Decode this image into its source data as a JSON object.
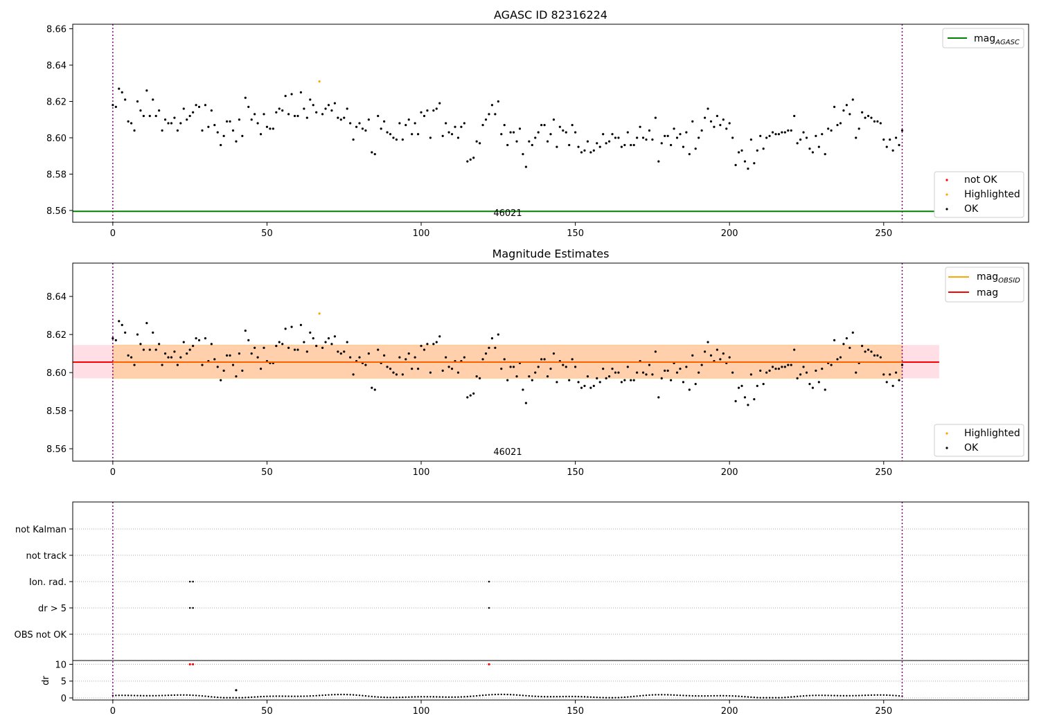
{
  "figure": {
    "top_title": "AGASC ID 82316224",
    "mid_title": "Magnitude Estimates",
    "obsid_label": "46021"
  },
  "legends": {
    "top_lines": [
      {
        "label": "mag",
        "sub": "AGASC",
        "color": "#008000"
      }
    ],
    "top_points": [
      {
        "label": "not OK",
        "color": "#ff0000"
      },
      {
        "label": "Highlighted",
        "color": "#ffa500"
      },
      {
        "label": "OK",
        "color": "#000000"
      }
    ],
    "mid_lines": [
      {
        "label": "mag",
        "sub": "OBSID",
        "color": "#ffa500"
      },
      {
        "label": "mag",
        "sub": "",
        "color": "#ff0000"
      }
    ],
    "mid_points": [
      {
        "label": "Highlighted",
        "color": "#ffa500"
      },
      {
        "label": "OK",
        "color": "#000000"
      }
    ]
  },
  "chart_data": [
    {
      "type": "scatter",
      "title": "AGASC ID 82316224",
      "xlim": [
        -13,
        297
      ],
      "ylim": [
        8.5535,
        8.6625
      ],
      "xticks": [
        0,
        50,
        100,
        150,
        200,
        250
      ],
      "yticks": [
        8.56,
        8.58,
        8.6,
        8.62,
        8.64,
        8.66
      ],
      "mag_agasc": 8.5595,
      "obs_boundaries": [
        0,
        256
      ],
      "highlighted": [
        {
          "x": 67,
          "y": 8.631
        }
      ],
      "ok_mags": [
        8.618,
        8.617,
        8.627,
        8.625,
        8.621,
        8.609,
        8.608,
        8.604,
        8.62,
        8.615,
        8.612,
        8.626,
        8.612,
        8.621,
        8.612,
        8.615,
        8.604,
        8.61,
        8.608,
        8.608,
        8.611,
        8.604,
        8.608,
        8.616,
        8.61,
        8.612,
        8.614,
        8.618,
        8.617,
        8.604,
        8.618,
        8.606,
        8.615,
        8.607,
        8.603,
        8.596,
        8.601,
        8.609,
        8.609,
        8.604,
        8.598,
        8.61,
        8.601,
        8.622,
        8.617,
        8.61,
        8.613,
        8.608,
        8.602,
        8.613,
        8.606,
        8.605,
        8.605,
        8.614,
        8.616,
        8.615,
        8.623,
        8.613,
        8.624,
        8.612,
        8.612,
        8.625,
        8.616,
        8.611,
        8.621,
        8.618,
        8.614,
        8.631,
        8.613,
        8.616,
        8.618,
        8.615,
        8.619,
        8.611,
        8.61,
        8.611,
        8.616,
        8.608,
        8.599,
        8.606,
        8.608,
        8.605,
        8.604,
        8.61,
        8.592,
        8.591,
        8.612,
        8.605,
        8.609,
        8.603,
        8.602,
        8.6,
        8.599,
        8.608,
        8.599,
        8.607,
        8.61,
        8.602,
        8.608,
        8.602,
        8.614,
        8.612,
        8.615,
        8.6,
        8.615,
        8.616,
        8.619,
        8.601,
        8.608,
        8.603,
        8.602,
        8.606,
        8.6,
        8.606,
        8.608,
        8.587,
        8.588,
        8.589,
        8.598,
        8.597,
        8.607,
        8.61,
        8.613,
        8.618,
        8.613,
        8.62,
        8.602,
        8.607,
        8.596,
        8.603,
        8.603,
        8.598,
        8.605,
        8.591,
        8.584,
        8.598,
        8.596,
        8.6,
        8.603,
        8.607,
        8.607,
        8.598,
        8.602,
        8.61,
        8.595,
        8.606,
        8.604,
        8.603,
        8.596,
        8.607,
        8.603,
        8.595,
        8.592,
        8.593,
        8.598,
        8.592,
        8.593,
        8.597,
        8.595,
        8.602,
        8.597,
        8.598,
        8.602,
        8.6,
        8.6,
        8.595,
        8.596,
        8.603,
        8.596,
        8.596,
        8.6,
        8.606,
        8.6,
        8.599,
        8.604,
        8.599,
        8.611,
        8.587,
        8.597,
        8.601,
        8.601,
        8.596,
        8.605,
        8.6,
        8.602,
        8.595,
        8.603,
        8.591,
        8.609,
        8.594,
        8.6,
        8.604,
        8.611,
        8.616,
        8.609,
        8.606,
        8.612,
        8.607,
        8.61,
        8.605,
        8.608,
        8.6,
        8.585,
        8.592,
        8.593,
        8.587,
        8.583,
        8.599,
        8.586,
        8.593,
        8.601,
        8.594,
        8.6,
        8.601,
        8.603,
        8.602,
        8.602,
        8.603,
        8.603,
        8.604,
        8.604,
        8.612,
        8.597,
        8.599,
        8.603,
        8.6,
        8.594,
        8.592,
        8.601,
        8.595,
        8.602,
        8.591,
        8.605,
        8.604,
        8.617,
        8.607,
        8.608,
        8.615,
        8.618,
        8.613,
        8.621,
        8.6,
        8.605,
        8.614,
        8.611,
        8.612,
        8.611,
        8.609,
        8.609,
        8.608,
        8.599,
        8.595,
        8.599,
        8.593,
        8.6,
        8.596,
        8.604
      ]
    },
    {
      "type": "scatter",
      "title": "Magnitude Estimates",
      "xlim": [
        -13,
        297
      ],
      "ylim": [
        8.5535,
        8.6575
      ],
      "xticks": [
        0,
        50,
        100,
        150,
        200,
        250
      ],
      "yticks": [
        8.56,
        8.58,
        8.6,
        8.62,
        8.64
      ],
      "mag": 8.6055,
      "mag_band": [
        8.597,
        8.6145
      ],
      "band_xrange": [
        -13,
        268
      ],
      "obs_boundaries": [
        0,
        256
      ]
    },
    {
      "type": "scatter",
      "categories": [
        "OBS not OK",
        "dr > 5",
        "Ion. rad.",
        "not track",
        "not Kalman"
      ],
      "flags": {
        "dr > 5": [
          25,
          26,
          122
        ],
        "Ion. rad.": [
          25,
          26,
          122
        ]
      },
      "dr_ylabel": "dr",
      "dr_yticks": [
        0,
        5,
        10
      ],
      "dr_values_note_only_plotted": true,
      "dr_large": [
        {
          "x": 25,
          "y": 10
        },
        {
          "x": 26,
          "y": 10
        },
        {
          "x": 122,
          "y": 10
        },
        {
          "x": 40,
          "y": 2.3
        }
      ],
      "dr_baseline": 0.5,
      "xlim": [
        -13,
        297
      ],
      "xticks": [
        0,
        50,
        100,
        150,
        200,
        250
      ]
    }
  ]
}
